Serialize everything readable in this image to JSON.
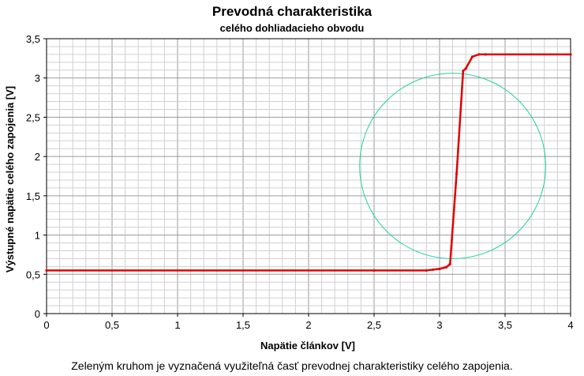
{
  "chart_data": {
    "type": "line",
    "title": "Prevodná charakteristika",
    "subtitle": "celého dohliadacieho obvodu",
    "xlabel": "Napätie článkov [V]",
    "ylabel": "Výstupné napätie celého zapojenia [V]",
    "xlim": [
      0,
      4
    ],
    "ylim": [
      0,
      3.5
    ],
    "xticks": [
      "0",
      "0,5",
      "1",
      "1,5",
      "2",
      "2,5",
      "3",
      "3,5",
      "4"
    ],
    "yticks": [
      "0",
      "0,5",
      "1",
      "1,5",
      "2",
      "2,5",
      "3",
      "3,5"
    ],
    "grid": true,
    "series": [
      {
        "color": "#e00000",
        "x": [
          0,
          2.5,
          2.9,
          2.95,
          3.0,
          3.05,
          3.08,
          3.13,
          3.18,
          3.2,
          3.25,
          3.3,
          3.35,
          4.0
        ],
        "y": [
          0.55,
          0.55,
          0.55,
          0.56,
          0.57,
          0.59,
          0.63,
          1.78,
          3.09,
          3.12,
          3.27,
          3.3,
          3.3,
          3.3
        ]
      }
    ],
    "annotation_circle": {
      "color": "#20d0a0",
      "center_x": 3.1,
      "center_y": 1.88,
      "radius_x": 0.71,
      "radius_y": 1.18
    },
    "caption": "Zeleným kruhom je vyznačená využiteľná časť prevodnej charakteristiky celého zapojenia."
  }
}
